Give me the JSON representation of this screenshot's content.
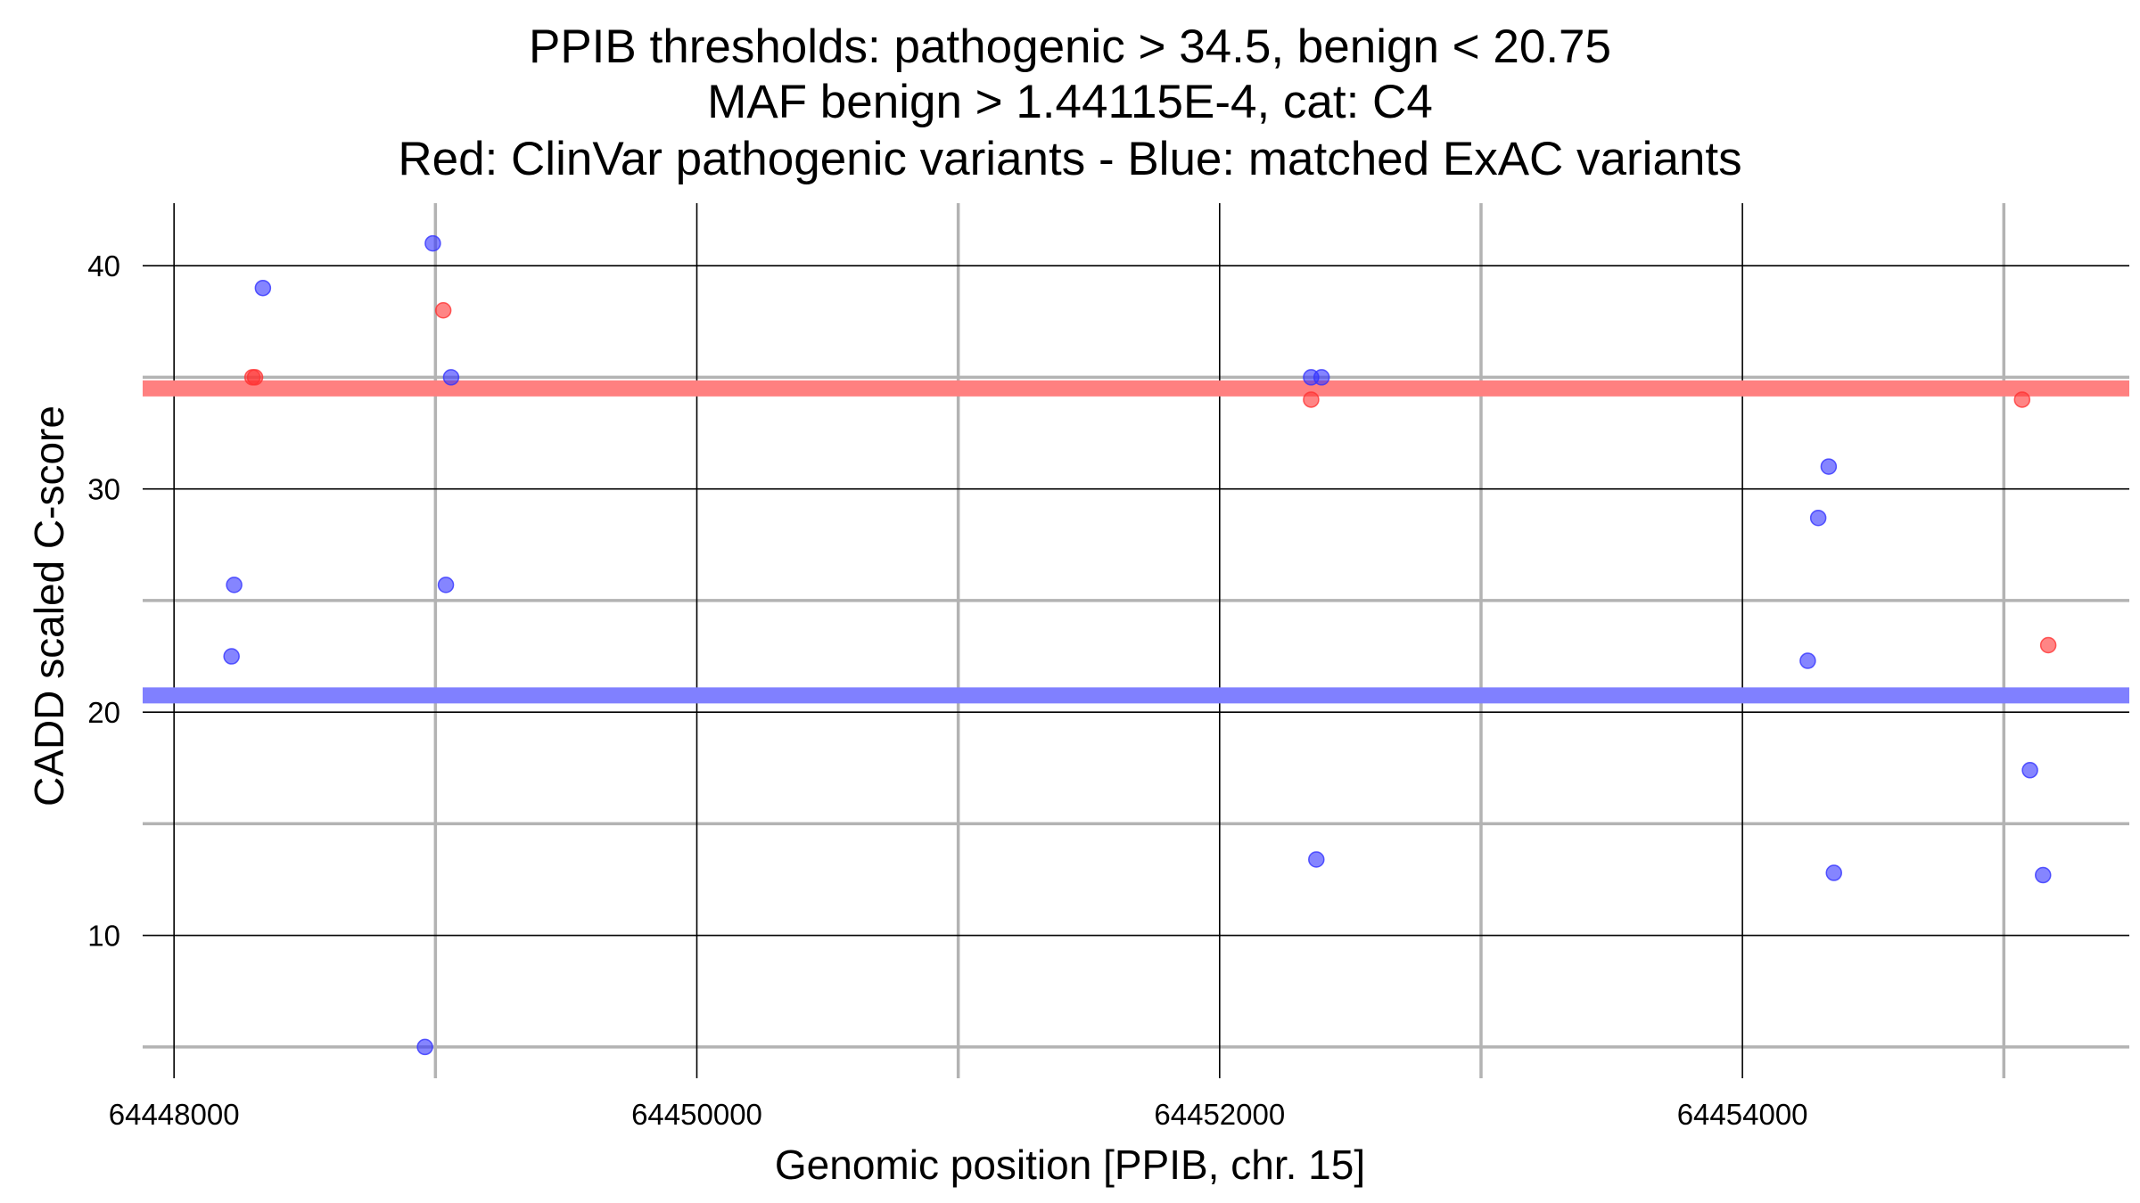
{
  "chart_data": {
    "type": "scatter",
    "title_lines": [
      "PPIB thresholds: pathogenic > 34.5, benign < 20.75",
      "MAF benign > 1.44115E-4, cat: C4",
      "Red: ClinVar pathogenic variants - Blue: matched ExAC variants"
    ],
    "xlabel": "Genomic position [PPIB, chr. 15]",
    "ylabel": "CADD scaled C-score",
    "xlim": [
      64447880,
      64455480
    ],
    "ylim": [
      3.6,
      42.8
    ],
    "x_ticks": [
      64448000,
      64450000,
      64452000,
      64454000
    ],
    "x_minor": [
      64449000,
      64451000,
      64453000,
      64455000
    ],
    "y_ticks": [
      10,
      20,
      30,
      40
    ],
    "y_minor": [
      5,
      15,
      25,
      35
    ],
    "grid": true,
    "thresholds": [
      {
        "name": "pathogenic",
        "value": 34.5,
        "color": "#ff8080"
      },
      {
        "name": "benign",
        "value": 20.75,
        "color": "#8080ff"
      }
    ],
    "series": [
      {
        "color": "#ff3333",
        "points": [
          {
            "x": 64448300,
            "y": 35
          },
          {
            "x": 64448310,
            "y": 35
          },
          {
            "x": 64449030,
            "y": 38
          },
          {
            "x": 64452350,
            "y": 34
          },
          {
            "x": 64455070,
            "y": 34
          },
          {
            "x": 64455170,
            "y": 23
          }
        ]
      },
      {
        "color": "#3333ff",
        "points": [
          {
            "x": 64448230,
            "y": 25.7
          },
          {
            "x": 64448220,
            "y": 22.5
          },
          {
            "x": 64448340,
            "y": 39
          },
          {
            "x": 64448990,
            "y": 41
          },
          {
            "x": 64449060,
            "y": 35
          },
          {
            "x": 64449040,
            "y": 25.7
          },
          {
            "x": 64448960,
            "y": 5
          },
          {
            "x": 64452350,
            "y": 35
          },
          {
            "x": 64452390,
            "y": 35
          },
          {
            "x": 64452370,
            "y": 13.4
          },
          {
            "x": 64454330,
            "y": 31
          },
          {
            "x": 64454290,
            "y": 28.7
          },
          {
            "x": 64454250,
            "y": 22.3
          },
          {
            "x": 64454350,
            "y": 12.8
          },
          {
            "x": 64455100,
            "y": 17.4
          },
          {
            "x": 64455150,
            "y": 12.7
          }
        ]
      }
    ]
  }
}
